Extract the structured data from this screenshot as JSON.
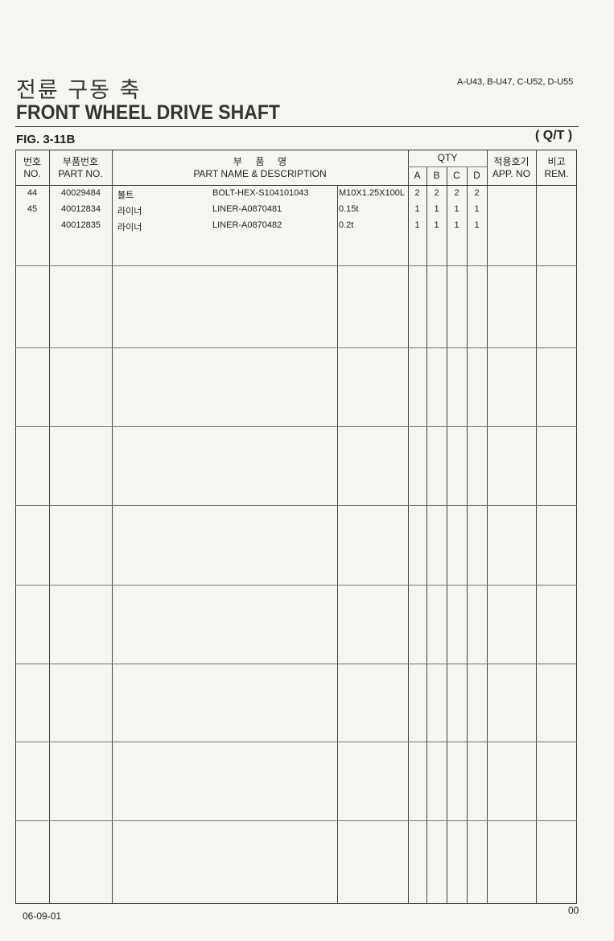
{
  "header": {
    "title_kr": "전륜 구동 축",
    "title_en": "FRONT WHEEL DRIVE SHAFT",
    "models": "A-U43, B-U47, C-U52, D-U55",
    "figure": "FIG. 3-11B",
    "transmission": "( Q/T )"
  },
  "table": {
    "headers": {
      "no_kr": "번호",
      "no_en": "NO.",
      "part_kr": "부품번호",
      "part_en": "PART NO.",
      "name_kr": "부     품     명",
      "name_en": "PART NAME & DESCRIPTION",
      "qty": "QTY",
      "a": "A",
      "b": "B",
      "c": "C",
      "d": "D",
      "app_kr": "적용호기",
      "app_en": "APP. NO",
      "rem_kr": "비고",
      "rem_en": "REM."
    },
    "rows": [
      {
        "no": "44",
        "part": "40029484",
        "name_kr": "볼트",
        "name_en": "BOLT-HEX-S104101043",
        "spec": "M10X1.25X100L",
        "a": "2",
        "b": "2",
        "c": "2",
        "d": "2"
      },
      {
        "no": "45",
        "part": "40012834",
        "name_kr": "라이너",
        "name_en": "LINER-A0870481",
        "spec": "0.15t",
        "a": "1",
        "b": "1",
        "c": "1",
        "d": "1"
      },
      {
        "no": "",
        "part": "40012835",
        "name_kr": "라이너",
        "name_en": "LINER-A0870482",
        "spec": "0.2t",
        "a": "1",
        "b": "1",
        "c": "1",
        "d": "1"
      }
    ]
  },
  "footer": {
    "date": "06-09-01",
    "page": "00"
  }
}
